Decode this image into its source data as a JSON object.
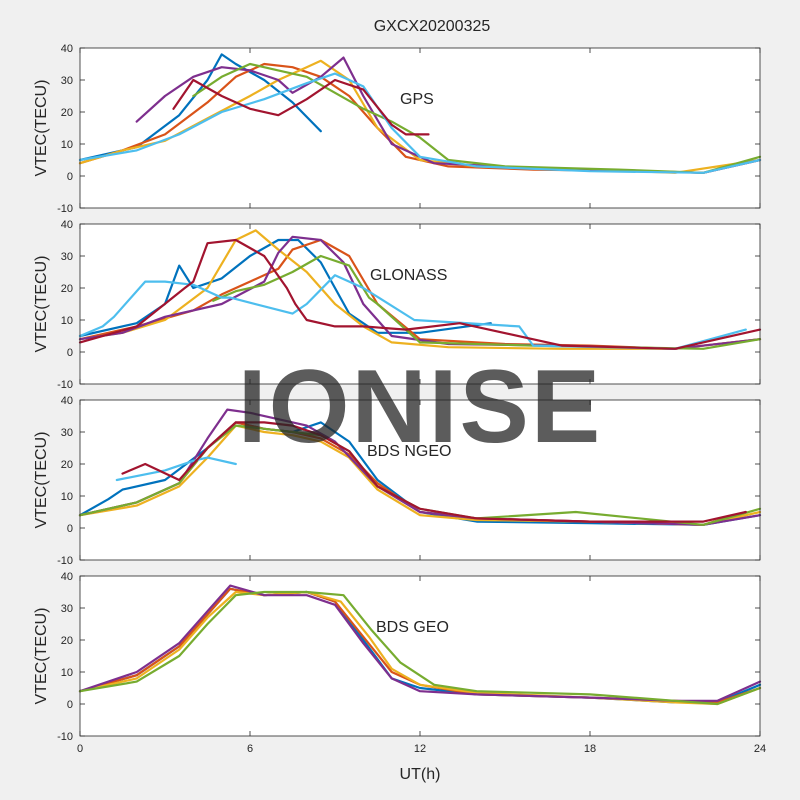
{
  "figure": {
    "title": "GXCX20200325",
    "watermark": "IONISE"
  },
  "chart_data": {
    "type": "line",
    "xlabel": "UT(h)",
    "xlim": [
      0,
      24
    ],
    "xticks": [
      0,
      6,
      12,
      18,
      24
    ],
    "panels": [
      {
        "label": "GPS",
        "ylabel": "VTEC(TECU)",
        "ylim": [
          -10,
          40
        ],
        "yticks": [
          -10,
          0,
          10,
          20,
          30,
          40
        ],
        "series": [
          {
            "color": "#0072bd",
            "x": [
              0,
              2,
              3.5,
              4.5,
              5,
              5.5,
              6.5,
              7.5,
              8.5
            ],
            "y": [
              5,
              9,
              19,
              30,
              38,
              35,
              30,
              23,
              14
            ]
          },
          {
            "color": "#d95319",
            "x": [
              0,
              1.5,
              3,
              4.5,
              5.5,
              6.5,
              7.5,
              8.5,
              9.5,
              10.5,
              11.5,
              13,
              16,
              20,
              22,
              24
            ],
            "y": [
              4,
              8,
              13,
              23,
              31,
              35,
              34,
              31,
              25,
              15,
              6,
              3,
              2,
              1.5,
              1,
              5
            ]
          },
          {
            "color": "#edb120",
            "x": [
              0,
              1.5,
              3,
              4.5,
              6,
              7,
              8,
              8.5,
              9.5,
              10.5,
              12,
              14,
              18,
              21,
              24
            ],
            "y": [
              4,
              8,
              11,
              18,
              25,
              30,
              34,
              36,
              30,
              15,
              5,
              3,
              2,
              1,
              5
            ]
          },
          {
            "color": "#7e2f8e",
            "x": [
              2,
              3,
              4,
              5,
              6,
              7,
              7.5,
              8.5,
              9.3,
              10,
              11,
              12.5,
              16,
              20,
              22,
              24
            ],
            "y": [
              17,
              25,
              31,
              34,
              33,
              30,
              26,
              31,
              37,
              25,
              10,
              4,
              2.5,
              1.5,
              1,
              5
            ]
          },
          {
            "color": "#77ac30",
            "x": [
              4,
              5,
              6,
              7,
              8,
              9,
              10,
              11,
              12,
              13,
              15,
              19,
              22,
              24
            ],
            "y": [
              25,
              31,
              35,
              33,
              31,
              26,
              21,
              17,
              12,
              5,
              3,
              2,
              1,
              6
            ]
          },
          {
            "color": "#4dbeee",
            "x": [
              0,
              2,
              3.5,
              5,
              6.5,
              8,
              9,
              10,
              11,
              12,
              14,
              18,
              22,
              24
            ],
            "y": [
              5,
              8,
              13,
              20,
              24,
              29,
              32,
              28,
              15,
              6,
              3,
              1.5,
              1,
              5
            ]
          },
          {
            "color": "#a2142f",
            "x": [
              3.3,
              4,
              5,
              6,
              7,
              8,
              9,
              10,
              11,
              11.5,
              12.3
            ],
            "y": [
              21,
              30,
              25,
              21,
              19,
              24,
              30,
              27,
              16,
              13,
              13
            ]
          }
        ]
      },
      {
        "label": "GLONASS",
        "ylabel": "VTEC(TECU)",
        "ylim": [
          -10,
          40
        ],
        "yticks": [
          -10,
          0,
          10,
          20,
          30,
          40
        ],
        "series": [
          {
            "color": "#0072bd",
            "x": [
              0,
              2,
              3,
              3.5,
              4,
              5,
              6,
              7,
              7.7,
              8.5,
              9.5,
              10.5,
              12,
              14.5
            ],
            "y": [
              5,
              9,
              15,
              27,
              20,
              23,
              30,
              35,
              35,
              28,
              12,
              6,
              6,
              9
            ]
          },
          {
            "color": "#d95319",
            "x": [
              0,
              2,
              4,
              5,
              6,
              7,
              7.5,
              8.5,
              9.5,
              10.5,
              12,
              15,
              18,
              21,
              24
            ],
            "y": [
              4,
              8,
              13,
              18,
              22,
              26,
              32,
              35,
              30,
              15,
              4,
              2.5,
              2,
              1,
              4
            ]
          },
          {
            "color": "#edb120",
            "x": [
              0,
              1.5,
              3,
              4.5,
              5.5,
              6.2,
              7,
              8,
              9,
              10,
              11,
              13,
              17,
              21,
              24
            ],
            "y": [
              4,
              6,
              10,
              20,
              35,
              38,
              32,
              25,
              15,
              8,
              3,
              1.5,
              1,
              1,
              4
            ]
          },
          {
            "color": "#7e2f8e",
            "x": [
              0,
              1.5,
              3,
              5,
              6.5,
              7,
              7.5,
              8.5,
              9.3,
              10,
              11,
              13,
              17,
              21,
              24
            ],
            "y": [
              4,
              6,
              11,
              15,
              22,
              31,
              36,
              35,
              28,
              15,
              5,
              2.5,
              2,
              1,
              4
            ]
          },
          {
            "color": "#77ac30",
            "x": [
              4.7,
              5.5,
              6.5,
              7.5,
              8.5,
              9.5,
              10.2,
              10.5,
              12,
              16,
              19,
              22,
              24
            ],
            "y": [
              16,
              19,
              21,
              25,
              30,
              27,
              17,
              15,
              3,
              2,
              1.5,
              1,
              4
            ]
          },
          {
            "color": "#4dbeee",
            "x": [
              0,
              0.8,
              1.2,
              2.3,
              3,
              4,
              5,
              5.3,
              7.5,
              8,
              9,
              10,
              11.8,
              15.5,
              16,
              21,
              23.5
            ],
            "y": [
              5,
              8,
              11,
              22,
              22,
              21,
              17,
              17,
              12,
              15,
              24,
              20,
              10,
              8,
              2,
              1,
              7
            ]
          },
          {
            "color": "#a2142f",
            "x": [
              0,
              2,
              3.7,
              4,
              4.5,
              5.5,
              6.5,
              7.3,
              7.6,
              8,
              9,
              10,
              11.5,
              13.4,
              17,
              21,
              24
            ],
            "y": [
              3,
              8,
              20,
              22,
              34,
              35,
              30,
              20,
              15,
              10,
              8,
              8,
              7,
              9,
              2,
              1,
              7
            ]
          }
        ]
      },
      {
        "label": "BDS NGEO",
        "ylabel": "VTEC(TECU)",
        "ylim": [
          -10,
          40
        ],
        "yticks": [
          -10,
          0,
          10,
          20,
          30,
          40
        ],
        "series": [
          {
            "color": "#0072bd",
            "x": [
              0,
              1,
              1.5,
              3,
              4.5,
              5.5,
              6.5,
              7.5,
              8.5,
              9.5,
              10.5,
              12,
              14,
              18,
              22,
              24
            ],
            "y": [
              4,
              9,
              12,
              15,
              25,
              33,
              31,
              30,
              33,
              27,
              15,
              5,
              2,
              1.5,
              1,
              4
            ]
          },
          {
            "color": "#d95319",
            "x": [
              0,
              2,
              3.5,
              4.5,
              5.5,
              6.5,
              7.5,
              8.5,
              9.5,
              10.5,
              12,
              14,
              18,
              22,
              23.5
            ],
            "y": [
              4,
              8,
              14,
              25,
              33,
              31,
              30,
              28,
              23,
              14,
              5,
              3,
              2,
              1,
              5
            ]
          },
          {
            "color": "#edb120",
            "x": [
              0,
              2,
              3.5,
              4.5,
              5.5,
              6.5,
              7.5,
              8.5,
              9.5,
              10.5,
              12,
              14,
              18,
              22,
              24
            ],
            "y": [
              4,
              7,
              13,
              22,
              32,
              30,
              29,
              27,
              22,
              12,
              4,
              2.5,
              2,
              1,
              5
            ]
          },
          {
            "color": "#7e2f8e",
            "x": [
              0,
              2,
              3.5,
              4.5,
              5.2,
              6,
              7,
              8,
              9,
              10.5,
              12,
              14,
              18,
              22,
              24
            ],
            "y": [
              4,
              8,
              14,
              28,
              37,
              36,
              34,
              32,
              27,
              13,
              5,
              3,
              2,
              1,
              4
            ]
          },
          {
            "color": "#77ac30",
            "x": [
              0,
              2,
              3.5,
              4.5,
              5.5,
              6.5,
              7.5,
              8.5,
              9.5,
              10.5,
              12,
              14,
              17.5,
              22,
              24
            ],
            "y": [
              4,
              8,
              14,
              25,
              32,
              31,
              30,
              29,
              24,
              13,
              6,
              3,
              5,
              1,
              6
            ]
          },
          {
            "color": "#4dbeee",
            "x": [
              1.3,
              3,
              4,
              4.5,
              5.5
            ],
            "y": [
              15,
              18,
              21,
              22,
              20
            ]
          },
          {
            "color": "#a2142f",
            "x": [
              1.5,
              2.3,
              3.5,
              4.5,
              5.5,
              6.5,
              7.5,
              8.5,
              9.5,
              10.5,
              12,
              14,
              18,
              22,
              23.5
            ],
            "y": [
              17,
              20,
              15,
              25,
              33,
              33,
              32,
              29,
              24,
              13,
              6,
              3,
              2,
              2,
              5
            ]
          }
        ]
      },
      {
        "label": "BDS GEO",
        "ylabel": "VTEC(TECU)",
        "ylim": [
          -10,
          40
        ],
        "yticks": [
          -10,
          0,
          10,
          20,
          30,
          40
        ],
        "series": [
          {
            "color": "#0072bd",
            "x": [
              0,
              2,
              3.5,
              4.5,
              5.3,
              6.5,
              8,
              9,
              10,
              11,
              12,
              14,
              18,
              21,
              22.5,
              24
            ],
            "y": [
              4,
              9,
              18,
              28,
              36,
              34,
              35,
              32,
              20,
              8,
              5,
              3,
              2,
              0.5,
              0.5,
              6
            ]
          },
          {
            "color": "#d95319",
            "x": [
              0,
              2,
              3.5,
              4.5,
              5.3,
              6.5,
              8,
              9,
              10,
              11,
              12,
              14,
              18,
              21,
              22.5,
              24
            ],
            "y": [
              4,
              9,
              18,
              28,
              36,
              34,
              35,
              32,
              21,
              10,
              6,
              3,
              2,
              1,
              0.5,
              5
            ]
          },
          {
            "color": "#edb120",
            "x": [
              0,
              2,
              3.5,
              4.5,
              5.5,
              6.5,
              8,
              9.2,
              10.2,
              11,
              12,
              14,
              18,
              21,
              22.5,
              24
            ],
            "y": [
              4,
              8,
              17,
              27,
              35,
              34,
              35,
              32,
              21,
              11,
              6,
              3.5,
              2,
              0.5,
              0,
              5
            ]
          },
          {
            "color": "#7e2f8e",
            "x": [
              0,
              2,
              3.5,
              4.5,
              5.3,
              6.5,
              8,
              9,
              10,
              11,
              12,
              14,
              18,
              21,
              22.5,
              24
            ],
            "y": [
              4,
              10,
              19,
              29,
              37,
              34,
              34,
              31,
              19,
              8,
              4,
              3,
              2,
              1,
              1,
              7
            ]
          },
          {
            "color": "#77ac30",
            "x": [
              0,
              2,
              3.5,
              4.5,
              5.5,
              6.5,
              8,
              9.3,
              10.3,
              11.3,
              12.5,
              14,
              18,
              21,
              22.5,
              24
            ],
            "y": [
              4,
              7,
              15,
              25,
              34,
              35,
              35,
              34,
              23,
              13,
              6,
              4,
              3,
              1,
              0,
              5
            ]
          }
        ]
      }
    ]
  }
}
